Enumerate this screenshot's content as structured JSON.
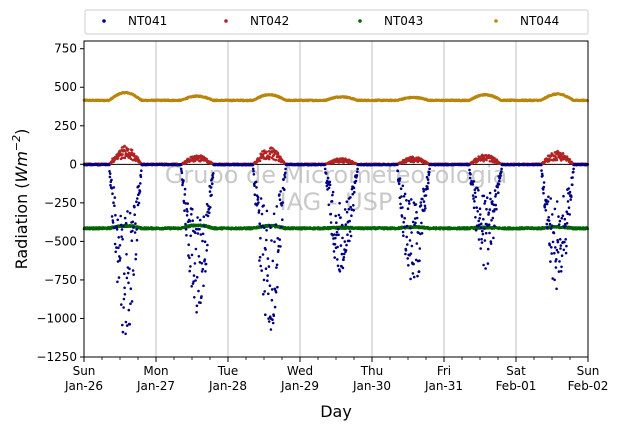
{
  "chart_data": {
    "type": "scatter",
    "title": "",
    "xlabel": "Day",
    "ylabel": "Radiation (",
    "ylabel_math": "Wm",
    "ylabel_exp": "−2",
    "ylabel_close": ")",
    "ylim": [
      -1250,
      800
    ],
    "yticks": [
      -1250,
      -1000,
      -750,
      -500,
      -250,
      0,
      250,
      500,
      750
    ],
    "ytick_labels": [
      "−1250",
      "−1000",
      "−750",
      "−500",
      "−250",
      "0",
      "250",
      "500",
      "750"
    ],
    "xlim": [
      0,
      7
    ],
    "x_unit": "days since Sun Jan-26",
    "xticks": [
      {
        "day": 0,
        "line1": "Sun",
        "line2": "Jan-26"
      },
      {
        "day": 1,
        "line1": "Mon",
        "line2": "Jan-27"
      },
      {
        "day": 2,
        "line1": "Tue",
        "line2": "Jan-28"
      },
      {
        "day": 3,
        "line1": "Wed",
        "line2": "Jan-29"
      },
      {
        "day": 4,
        "line1": "Thu",
        "line2": "Jan-30"
      },
      {
        "day": 5,
        "line1": "Fri",
        "line2": "Jan-31"
      },
      {
        "day": 6,
        "line1": "Sat",
        "line2": "Feb-01"
      },
      {
        "day": 7,
        "line1": "Sun",
        "line2": "Feb-02"
      }
    ],
    "grid": "vertical",
    "legend_placement": "top, above plot",
    "watermark_line1": "Grupo de Micrometeorologia",
    "watermark_line2": "IAG - USP",
    "series": [
      {
        "name": "NT041",
        "color": "#000080",
        "baseline": -2,
        "daily_min": [
          -1140,
          -980,
          -1110,
          -770,
          -830,
          -680,
          -850
        ],
        "description": "net longwave-like negative daytime dips"
      },
      {
        "name": "NT042",
        "color": "#b22222",
        "baseline": 0,
        "daily_max": [
          120,
          60,
          110,
          40,
          50,
          65,
          90
        ]
      },
      {
        "name": "NT043",
        "color": "#006400",
        "baseline": -415,
        "daily_max": [
          -395,
          -390,
          -395,
          -410,
          -405,
          -410,
          -405
        ]
      },
      {
        "name": "NT044",
        "color": "#b8860b",
        "baseline": 420,
        "daily_max": [
          470,
          445,
          455,
          440,
          435,
          455,
          460
        ]
      }
    ]
  }
}
